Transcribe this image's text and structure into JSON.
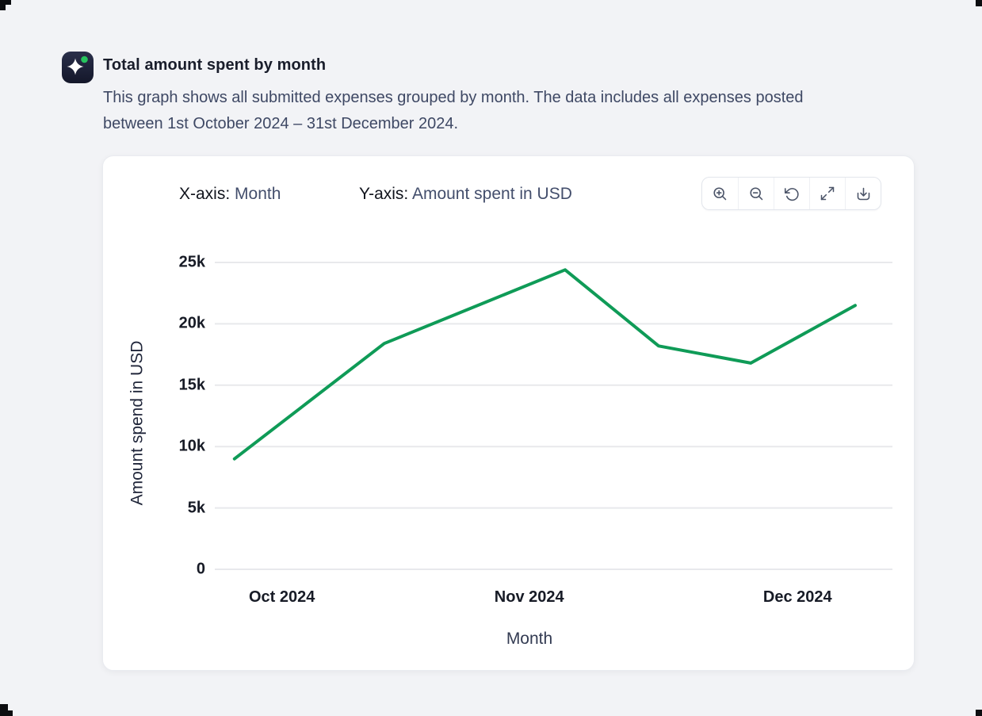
{
  "header": {
    "title": "Total amount spent by month",
    "description_lines": [
      "This graph shows all submitted expenses grouped by month. The data includes all expenses posted",
      "between 1st October 2024 – 31st December 2024."
    ]
  },
  "card": {
    "x_axis": {
      "label": "X-axis:",
      "value": "Month"
    },
    "y_axis": {
      "label": "Y-axis:",
      "value": "Amount spent in USD"
    },
    "toolbar": [
      {
        "id": "zoom-in",
        "icon": "zoom-in-icon"
      },
      {
        "id": "zoom-out",
        "icon": "zoom-out-icon"
      },
      {
        "id": "reset-view",
        "icon": "rotate-ccw-icon"
      },
      {
        "id": "fullscreen",
        "icon": "expand-icon"
      },
      {
        "id": "download",
        "icon": "download-icon"
      }
    ]
  },
  "chart_data": {
    "type": "line",
    "title": "Total amount spent by month",
    "xlabel": "Month",
    "ylabel": "Amount spend in USD",
    "ylim": [
      0,
      25000
    ],
    "grid": "horizontal-only",
    "legend": "none",
    "line_color": "#0f9b57",
    "x_tick_labels": [
      "Oct 2024",
      "Nov 2024",
      "Dec 2024"
    ],
    "x_tick_positions_pct": [
      9.9,
      46.4,
      86.0
    ],
    "y_ticks": [
      {
        "value": 0,
        "label": "0"
      },
      {
        "value": 5000,
        "label": "5k"
      },
      {
        "value": 10000,
        "label": "10k"
      },
      {
        "value": 15000,
        "label": "15k"
      },
      {
        "value": 20000,
        "label": "20k"
      },
      {
        "value": 25000,
        "label": "25k"
      }
    ],
    "series": [
      {
        "name": "Total amount spent",
        "points": [
          {
            "x_pct": 2.9,
            "value": 9000
          },
          {
            "x_pct": 25.0,
            "value": 18400
          },
          {
            "x_pct": 51.7,
            "value": 24400
          },
          {
            "x_pct": 65.5,
            "value": 18200
          },
          {
            "x_pct": 79.1,
            "value": 16800
          },
          {
            "x_pct": 94.5,
            "value": 21500
          }
        ]
      }
    ]
  },
  "colors": {
    "page_background": "#f2f3f6",
    "card_background": "#ffffff",
    "accent_green": "#0f9b57",
    "icon_tile": "#1d2135",
    "icon_dot_green": "#27c45e",
    "gridline": "#e8e9ec",
    "text_primary": "#171b26",
    "text_secondary": "#3e4864"
  }
}
